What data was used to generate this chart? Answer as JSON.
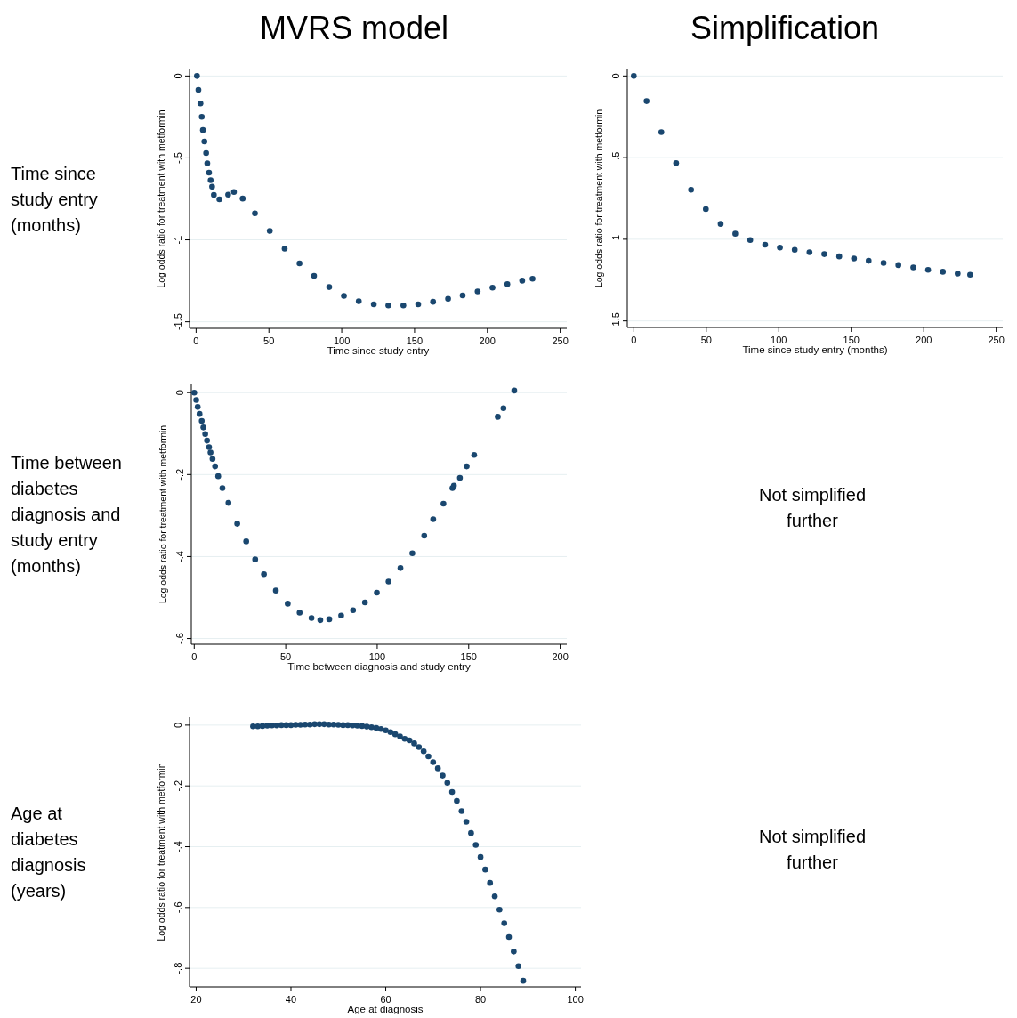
{
  "chart_data": [
    {
      "type": "scatter",
      "title": "MVRS model",
      "xlabel": "Time since study entry",
      "ylabel": "Log odds ratio for treatment with metformin",
      "annotations": [
        "Time since study entry (months)"
      ],
      "marker": "circle",
      "grid": "y",
      "xlim": [
        -4.5,
        254.5
      ],
      "ylim": [
        -1.54,
        0.04
      ],
      "xticks": [
        0,
        50,
        100,
        150,
        200,
        250
      ],
      "yticks": [
        0,
        {
          "value": -0.5,
          "label": "-.5"
        },
        -1,
        -1.5
      ],
      "series": [
        {
          "color": "#1a476f",
          "x": [
            0.6,
            1.6,
            3,
            3.9,
            4.7,
            5.7,
            6.9,
            7.7,
            8.9,
            10,
            11,
            12.2,
            16,
            22,
            26,
            32,
            40.4,
            50.6,
            60.8,
            71,
            81,
            91.4,
            101.5,
            111.7,
            122,
            132,
            142.3,
            152.5,
            162.7,
            173,
            183,
            193.3,
            203.5,
            213.7,
            223.9,
            231
          ],
          "values": [
            0,
            -0.085,
            -0.168,
            -0.249,
            -0.33,
            -0.4,
            -0.47,
            -0.533,
            -0.59,
            -0.636,
            -0.676,
            -0.726,
            -0.753,
            -0.724,
            -0.708,
            -0.748,
            -0.838,
            -0.946,
            -1.054,
            -1.144,
            -1.22,
            -1.288,
            -1.342,
            -1.375,
            -1.393,
            -1.4,
            -1.4,
            -1.393,
            -1.378,
            -1.36,
            -1.339,
            -1.315,
            -1.292,
            -1.27,
            -1.249,
            -1.237
          ]
        }
      ]
    },
    {
      "type": "scatter",
      "title": "Simplification",
      "xlabel": "Time since study entry (months)",
      "ylabel": "Log odds ratio for treatment with metformin",
      "marker": "circle",
      "grid": "y",
      "xlim": [
        -4.5,
        254.5
      ],
      "ylim": [
        -1.54,
        0.04
      ],
      "xticks": [
        0,
        50,
        100,
        150,
        200,
        250
      ],
      "yticks": [
        0,
        {
          "value": -0.5,
          "label": "-.5"
        },
        -1,
        -1.5
      ],
      "series": [
        {
          "color": "#1a476f",
          "x": [
            0,
            8.8,
            19,
            29.2,
            39.5,
            49.7,
            59.9,
            70,
            80.3,
            90.6,
            100.8,
            111,
            121.2,
            131.4,
            141.7,
            151.9,
            162,
            172.3,
            182.5,
            192.8,
            203,
            213.2,
            223.4,
            232
          ],
          "values": [
            0,
            -0.154,
            -0.344,
            -0.534,
            -0.697,
            -0.815,
            -0.906,
            -0.966,
            -1.005,
            -1.033,
            -1.051,
            -1.065,
            -1.08,
            -1.091,
            -1.105,
            -1.118,
            -1.132,
            -1.145,
            -1.158,
            -1.172,
            -1.187,
            -1.199,
            -1.21,
            -1.217
          ]
        }
      ]
    },
    {
      "type": "scatter",
      "xlabel": "Time between diagnosis and study entry",
      "ylabel": "Log odds ratio for treatment with metformin",
      "annotations": [
        "Time between diabetes diagnosis and study entry (months)"
      ],
      "marker": "circle",
      "grid": "y",
      "xlim": [
        -1.6,
        203.6
      ],
      "ylim": [
        -0.614,
        0.02
      ],
      "xticks": [
        0,
        50,
        100,
        150,
        200
      ],
      "yticks": [
        0,
        {
          "value": -0.2,
          "label": "-.2"
        },
        {
          "value": -0.4,
          "label": "-.4"
        },
        {
          "value": -0.6,
          "label": "-.6"
        }
      ],
      "series": [
        {
          "color": "#1a476f",
          "x": [
            0,
            1.1,
            1.9,
            2.9,
            4.1,
            5,
            6,
            7,
            8.1,
            8.9,
            10,
            11.4,
            13.1,
            15.4,
            18.7,
            23.5,
            28.4,
            33.3,
            38.1,
            44.6,
            51.1,
            57.6,
            64.1,
            68.9,
            73.8,
            80.3,
            86.8,
            93.3,
            99.8,
            106.2,
            112.7,
            119.2,
            125.7,
            130.6,
            136.2,
            141.1,
            141.9,
            145.2,
            148.9,
            153,
            165.9,
            169,
            174.9
          ],
          "values": [
            0,
            -0.018,
            -0.035,
            -0.052,
            -0.069,
            -0.085,
            -0.101,
            -0.117,
            -0.133,
            -0.146,
            -0.162,
            -0.18,
            -0.204,
            -0.233,
            -0.269,
            -0.32,
            -0.363,
            -0.407,
            -0.443,
            -0.483,
            -0.515,
            -0.537,
            -0.55,
            -0.555,
            -0.553,
            -0.544,
            -0.531,
            -0.512,
            -0.488,
            -0.461,
            -0.428,
            -0.392,
            -0.349,
            -0.309,
            -0.271,
            -0.233,
            -0.227,
            -0.208,
            -0.18,
            -0.152,
            -0.059,
            -0.038,
            0.005
          ]
        }
      ]
    },
    {
      "type": "other",
      "annotations": [
        "Not simplified further"
      ]
    },
    {
      "type": "scatter",
      "xlabel": "Age at diagnosis",
      "ylabel": "Log odds ratio for treatment with metformin",
      "annotations": [
        "Age at diabetes diagnosis (years)"
      ],
      "marker": "circle",
      "grid": "y",
      "xlim": [
        18.6,
        101.2
      ],
      "ylim": [
        -0.861,
        0.026
      ],
      "xticks": [
        20,
        40,
        60,
        80,
        100
      ],
      "yticks": [
        0,
        {
          "value": -0.2,
          "label": "-.2"
        },
        {
          "value": -0.4,
          "label": "-.4"
        },
        {
          "value": -0.6,
          "label": "-.6"
        },
        {
          "value": -0.8,
          "label": "-.8"
        }
      ],
      "series": [
        {
          "color": "#1a476f",
          "x": [
            32,
            33,
            34,
            35,
            36,
            37,
            38,
            39,
            40,
            41,
            42,
            43,
            44,
            45,
            46,
            47,
            48,
            49,
            50,
            51,
            52,
            53,
            54,
            55,
            56,
            57,
            58,
            59,
            60,
            61,
            62,
            63,
            64,
            65,
            66,
            67,
            68,
            69,
            70,
            71,
            72,
            73,
            74,
            75,
            76,
            77,
            78,
            79,
            80,
            81,
            82,
            83,
            84,
            85,
            86,
            87,
            88,
            89
          ],
          "values": [
            -0.004,
            -0.004,
            -0.003,
            -0.002,
            -0.001,
            -0.001,
            0,
            0,
            0,
            0.001,
            0.001,
            0.002,
            0.002,
            0.003,
            0.003,
            0.003,
            0.002,
            0.002,
            0.001,
            0,
            0,
            -0.001,
            -0.002,
            -0.003,
            -0.005,
            -0.007,
            -0.009,
            -0.013,
            -0.017,
            -0.023,
            -0.03,
            -0.037,
            -0.045,
            -0.05,
            -0.06,
            -0.072,
            -0.086,
            -0.103,
            -0.122,
            -0.142,
            -0.166,
            -0.19,
            -0.22,
            -0.249,
            -0.283,
            -0.318,
            -0.355,
            -0.394,
            -0.434,
            -0.475,
            -0.519,
            -0.563,
            -0.607,
            -0.652,
            -0.697,
            -0.745,
            -0.793,
            -0.841
          ]
        }
      ]
    },
    {
      "type": "other",
      "annotations": [
        "Not simplified further"
      ]
    }
  ]
}
